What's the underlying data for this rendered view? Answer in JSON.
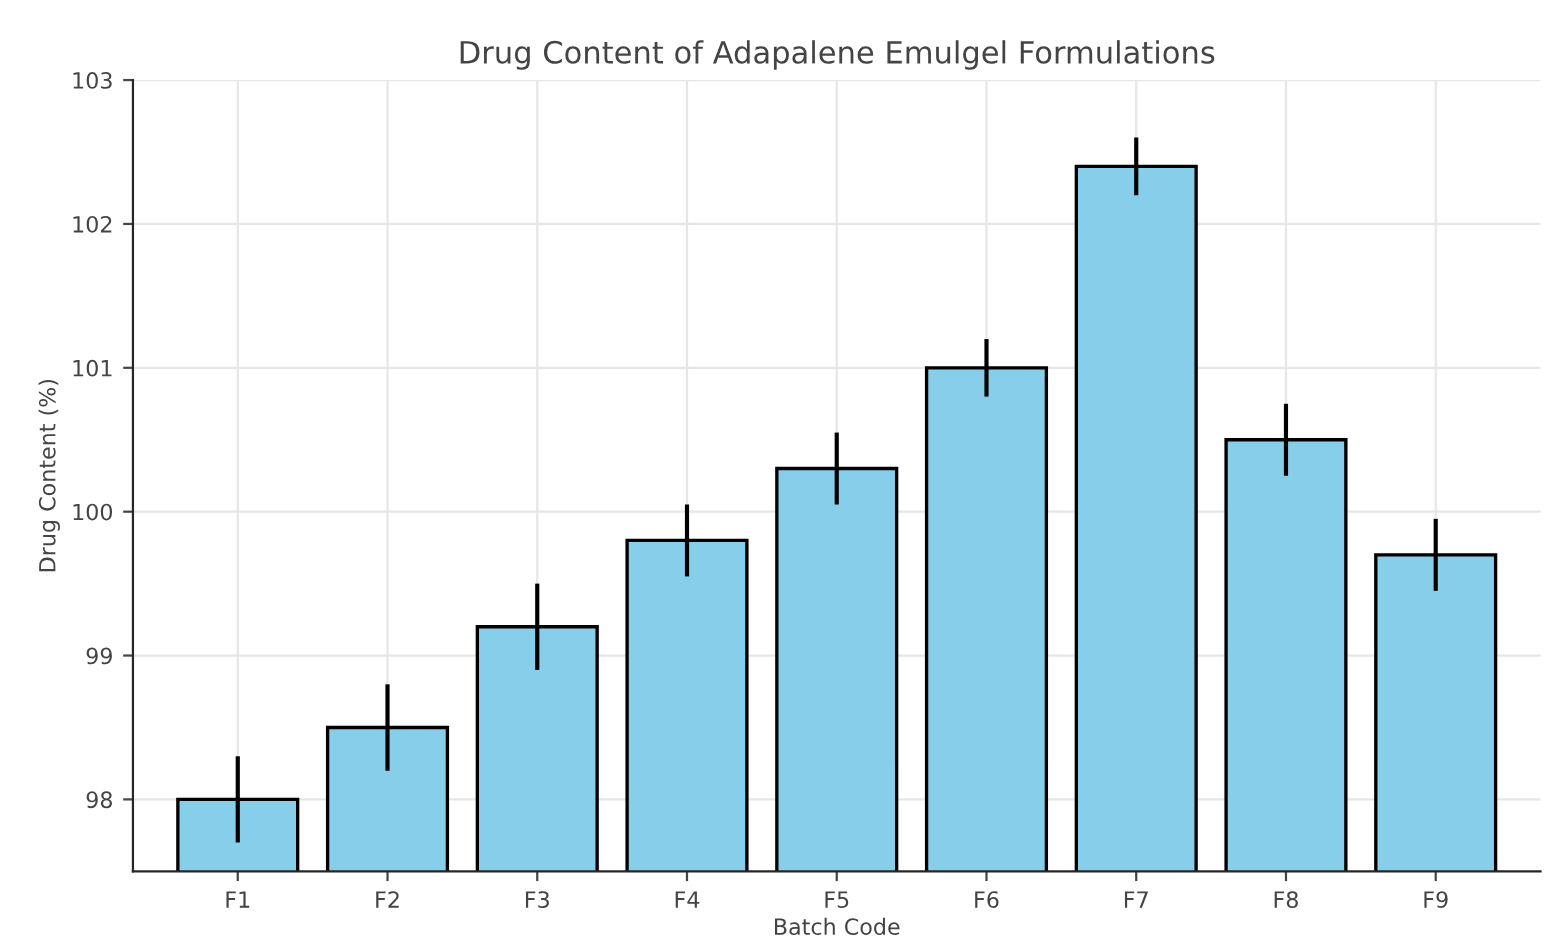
{
  "chart_data": {
    "type": "bar",
    "title": "Drug Content of Adapalene Emulgel Formulations",
    "xlabel": "Batch Code",
    "ylabel": "Drug Content (%)",
    "categories": [
      "F1",
      "F2",
      "F3",
      "F4",
      "F5",
      "F6",
      "F7",
      "F8",
      "F9"
    ],
    "values": [
      98.0,
      98.5,
      99.2,
      99.8,
      100.3,
      101.0,
      102.4,
      100.5,
      99.7
    ],
    "errors": [
      0.3,
      0.3,
      0.3,
      0.25,
      0.25,
      0.2,
      0.2,
      0.25,
      0.25
    ],
    "color": "#87ceeb",
    "ylim": [
      97.5,
      103
    ],
    "yticks": [
      98,
      99,
      100,
      101,
      102,
      103
    ],
    "grid": true
  }
}
